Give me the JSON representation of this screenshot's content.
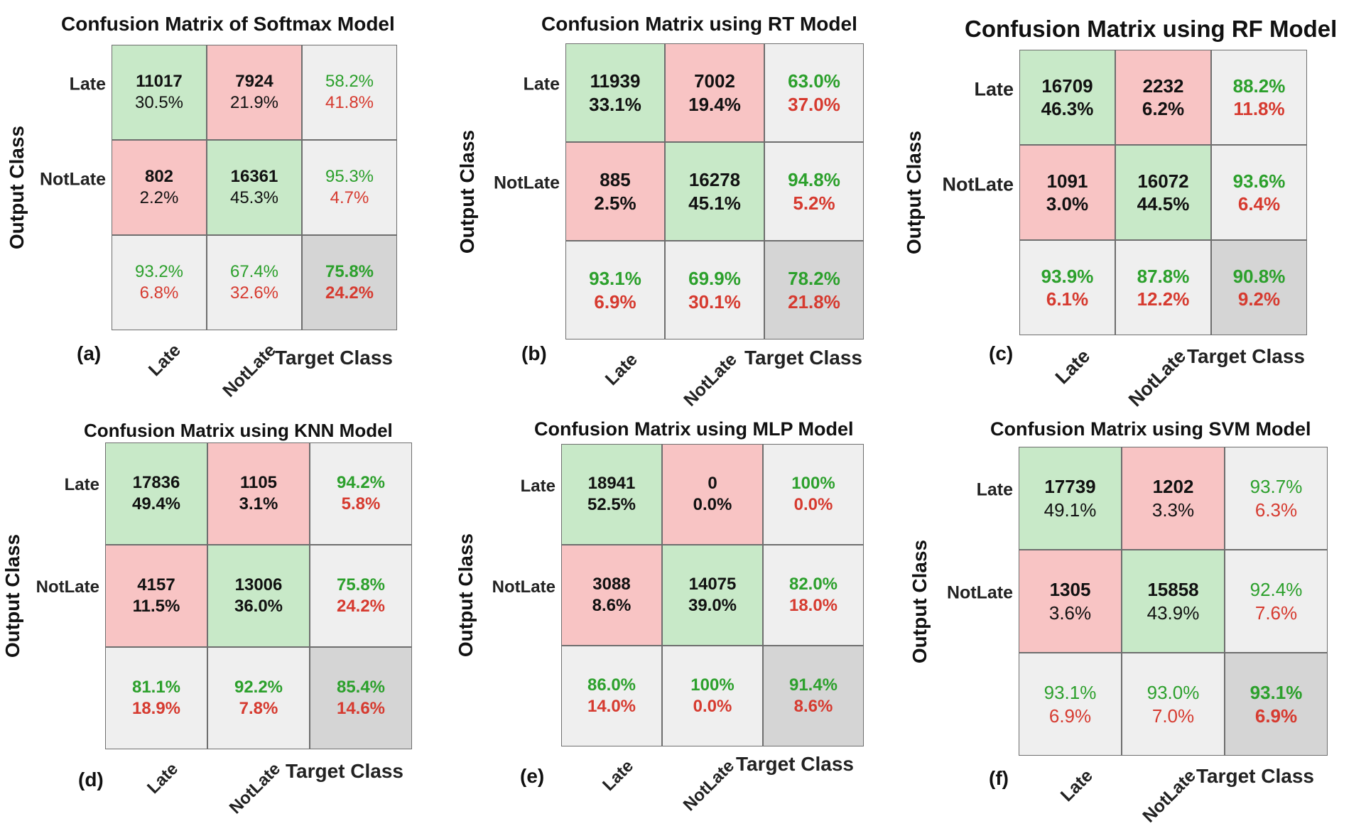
{
  "chart_data": [
    {
      "type": "table",
      "panel": "(a)",
      "title": "Confusion Matrix of Softmax Model",
      "ylabel": "Output Class",
      "xlabel": "Target Class",
      "row_labels": [
        "Late",
        "NotLate"
      ],
      "col_labels": [
        "Late",
        "NotLate"
      ],
      "matrix": [
        [
          11017,
          7924
        ],
        [
          802,
          16361
        ]
      ],
      "matrix_pct": [
        "30.5%",
        "21.9%",
        "2.2%",
        "45.3%"
      ],
      "row_summary": [
        [
          "58.2%",
          "41.8%"
        ],
        [
          "95.3%",
          "4.7%"
        ]
      ],
      "col_summary": [
        [
          "93.2%",
          "6.8%"
        ],
        [
          "67.4%",
          "32.6%"
        ]
      ],
      "overall": [
        "75.8%",
        "24.2%"
      ]
    },
    {
      "type": "table",
      "panel": "(b)",
      "title": "Confusion Matrix using RT Model",
      "ylabel": "Output Class",
      "xlabel": "Target Class",
      "row_labels": [
        "Late",
        "NotLate"
      ],
      "col_labels": [
        "Late",
        "NotLate"
      ],
      "matrix": [
        [
          11939,
          7002
        ],
        [
          885,
          16278
        ]
      ],
      "matrix_pct": [
        "33.1%",
        "19.4%",
        "2.5%",
        "45.1%"
      ],
      "row_summary": [
        [
          "63.0%",
          "37.0%"
        ],
        [
          "94.8%",
          "5.2%"
        ]
      ],
      "col_summary": [
        [
          "93.1%",
          "6.9%"
        ],
        [
          "69.9%",
          "30.1%"
        ]
      ],
      "overall": [
        "78.2%",
        "21.8%"
      ]
    },
    {
      "type": "table",
      "panel": "(c)",
      "title": "Confusion Matrix using RF Model",
      "ylabel": "Output Class",
      "xlabel": "Target Class",
      "row_labels": [
        "Late",
        "NotLate"
      ],
      "col_labels": [
        "Late",
        "NotLate"
      ],
      "matrix": [
        [
          16709,
          2232
        ],
        [
          1091,
          16072
        ]
      ],
      "matrix_pct": [
        "46.3%",
        "6.2%",
        "3.0%",
        "44.5%"
      ],
      "row_summary": [
        [
          "88.2%",
          "11.8%"
        ],
        [
          "93.6%",
          "6.4%"
        ]
      ],
      "col_summary": [
        [
          "93.9%",
          "6.1%"
        ],
        [
          "87.8%",
          "12.2%"
        ]
      ],
      "overall": [
        "90.8%",
        "9.2%"
      ]
    },
    {
      "type": "table",
      "panel": "(d)",
      "title": "Confusion Matrix using KNN Model",
      "ylabel": "Output Class",
      "xlabel": "Target Class",
      "row_labels": [
        "Late",
        "NotLate"
      ],
      "col_labels": [
        "Late",
        "NotLate"
      ],
      "matrix": [
        [
          17836,
          1105
        ],
        [
          4157,
          13006
        ]
      ],
      "matrix_pct": [
        "49.4%",
        "3.1%",
        "11.5%",
        "36.0%"
      ],
      "row_summary": [
        [
          "94.2%",
          "5.8%"
        ],
        [
          "75.8%",
          "24.2%"
        ]
      ],
      "col_summary": [
        [
          "81.1%",
          "18.9%"
        ],
        [
          "92.2%",
          "7.8%"
        ]
      ],
      "overall": [
        "85.4%",
        "14.6%"
      ]
    },
    {
      "type": "table",
      "panel": "(e)",
      "title": "Confusion Matrix using MLP Model",
      "ylabel": "Output Class",
      "xlabel": "Target Class",
      "row_labels": [
        "Late",
        "NotLate"
      ],
      "col_labels": [
        "Late",
        "NotLate"
      ],
      "matrix": [
        [
          18941,
          0
        ],
        [
          3088,
          14075
        ]
      ],
      "matrix_pct": [
        "52.5%",
        "0.0%",
        "8.6%",
        "39.0%"
      ],
      "row_summary": [
        [
          "100%",
          "0.0%"
        ],
        [
          "82.0%",
          "18.0%"
        ]
      ],
      "col_summary": [
        [
          "86.0%",
          "14.0%"
        ],
        [
          "100%",
          "0.0%"
        ]
      ],
      "overall": [
        "91.4%",
        "8.6%"
      ]
    },
    {
      "type": "table",
      "panel": "(f)",
      "title": "Confusion Matrix using SVM Model",
      "ylabel": "Output Class",
      "xlabel": "Target Class",
      "row_labels": [
        "Late",
        "NotLate"
      ],
      "col_labels": [
        "Late",
        "NotLate"
      ],
      "matrix": [
        [
          17739,
          1202
        ],
        [
          1305,
          15858
        ]
      ],
      "matrix_pct": [
        "49.1%",
        "3.3%",
        "3.6%",
        "43.9%"
      ],
      "row_summary": [
        [
          "93.7%",
          "6.3%"
        ],
        [
          "92.4%",
          "7.6%"
        ]
      ],
      "col_summary": [
        [
          "93.1%",
          "6.9%"
        ],
        [
          "93.0%",
          "7.0%"
        ]
      ],
      "overall": [
        "93.1%",
        "6.9%"
      ]
    }
  ],
  "colors": {
    "correct_cell": "#c8e9c8",
    "error_cell": "#f8c4c4",
    "summary_cell": "#efefef",
    "overall_cell": "#d5d5d5",
    "pct_green": "#2ca02c",
    "pct_red": "#d63a2f"
  }
}
